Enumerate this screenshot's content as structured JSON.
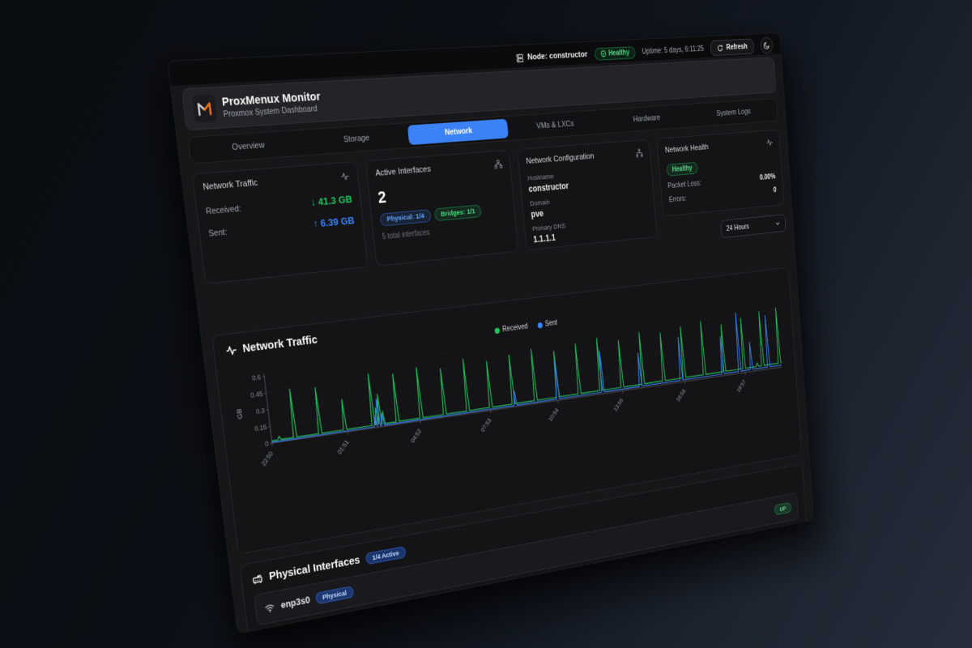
{
  "theme": {
    "accent_blue": "#3b82f6",
    "accent_green": "#22c55e",
    "accent_orange": "#f97316",
    "panel_bg": "#17171a",
    "card_bg": "#141417"
  },
  "toolbar": {
    "node_label": "Node: constructor",
    "health_label": "Healthy",
    "uptime": "Uptime: 5 days, 6:11:25",
    "refresh_label": "Refresh"
  },
  "header": {
    "title": "ProxMenux Monitor",
    "subtitle": "Proxmox System Dashboard"
  },
  "tabs": [
    {
      "label": "Overview",
      "active": false
    },
    {
      "label": "Storage",
      "active": false
    },
    {
      "label": "Network",
      "active": true
    },
    {
      "label": "VMs & LXCs",
      "active": false
    },
    {
      "label": "Hardware",
      "active": false
    },
    {
      "label": "System Logs",
      "active": false
    }
  ],
  "cards": {
    "traffic": {
      "title": "Network Traffic",
      "rows": [
        {
          "label": "Received:",
          "arrow": "↓",
          "value": "41.3 GB"
        },
        {
          "label": "Sent:",
          "arrow": "↑",
          "value": "6.39 GB"
        }
      ]
    },
    "interfaces": {
      "title": "Active Interfaces",
      "count": "2",
      "badges": [
        {
          "text": "Physical: 1/4"
        },
        {
          "text": "Bridges: 1/1"
        }
      ],
      "caption": "5 total interfaces"
    },
    "config": {
      "title": "Network Configuration",
      "fields": [
        {
          "label": "Hostname",
          "value": "constructor"
        },
        {
          "label": "Domain",
          "value": "pve"
        },
        {
          "label": "Primary DNS",
          "value": "1.1.1.1"
        }
      ]
    },
    "health": {
      "title": "Network Health",
      "status": "Healthy",
      "rows": [
        {
          "label": "Packet Loss:",
          "value": "0.00%"
        },
        {
          "label": "Errors:",
          "value": "0"
        }
      ]
    }
  },
  "range_select": {
    "value": "24 Hours"
  },
  "chart_section": {
    "title": "Network Traffic"
  },
  "chart_data": {
    "type": "line",
    "title": "Network Traffic",
    "ylabel": "GB",
    "ylim": [
      0,
      0.6
    ],
    "yticks": [
      0,
      0.15,
      0.3,
      0.45,
      0.6
    ],
    "x_minutes_range": [
      0,
      1380
    ],
    "xtick_minutes": [
      0,
      181,
      362,
      543,
      724,
      905,
      1086,
      1267
    ],
    "xtick_labels": [
      "22:50",
      "01:51",
      "04:52",
      "07:53",
      "10:54",
      "13:55",
      "16:56",
      "19:57"
    ],
    "grid": "dashed",
    "legend_position": "top",
    "series": [
      {
        "name": "Received",
        "color": "#22c55e",
        "baseline_gb": [
          0.02,
          0.045
        ],
        "spikes": [
          [
            18,
            0.05
          ],
          [
            55,
            0.46
          ],
          [
            115,
            0.44
          ],
          [
            175,
            0.3
          ],
          [
            245,
            0.5
          ],
          [
            254,
            0.18
          ],
          [
            262,
            0.3
          ],
          [
            270,
            0.14
          ],
          [
            305,
            0.47
          ],
          [
            365,
            0.5
          ],
          [
            425,
            0.46
          ],
          [
            485,
            0.52
          ],
          [
            545,
            0.47
          ],
          [
            605,
            0.5
          ],
          [
            665,
            0.53
          ],
          [
            725,
            0.48
          ],
          [
            785,
            0.52
          ],
          [
            845,
            0.55
          ],
          [
            905,
            0.5
          ],
          [
            965,
            0.55
          ],
          [
            1025,
            0.52
          ],
          [
            1085,
            0.55
          ],
          [
            1145,
            0.58
          ],
          [
            1205,
            0.52
          ],
          [
            1265,
            0.56
          ],
          [
            1305,
            0.08
          ],
          [
            1322,
            0.6
          ],
          [
            1374,
            0.62
          ]
        ]
      },
      {
        "name": "Sent",
        "color": "#3b82f6",
        "baseline_gb": [
          0.007,
          0.022
        ],
        "spikes": [
          [
            250,
            0.1
          ],
          [
            258,
            0.26
          ],
          [
            268,
            0.12
          ],
          [
            610,
            0.15
          ],
          [
            725,
            0.38
          ],
          [
            850,
            0.42
          ],
          [
            957,
            0.35
          ],
          [
            1076,
            0.45
          ],
          [
            1200,
            0.4
          ],
          [
            1251,
            0.62
          ],
          [
            1287,
            0.3
          ],
          [
            1340,
            0.55
          ]
        ]
      }
    ]
  },
  "physical": {
    "title": "Physical Interfaces",
    "badge": "1/4 Active",
    "interface": {
      "name": "enp3s0",
      "type_badge": "Physical",
      "status": "UP"
    }
  }
}
